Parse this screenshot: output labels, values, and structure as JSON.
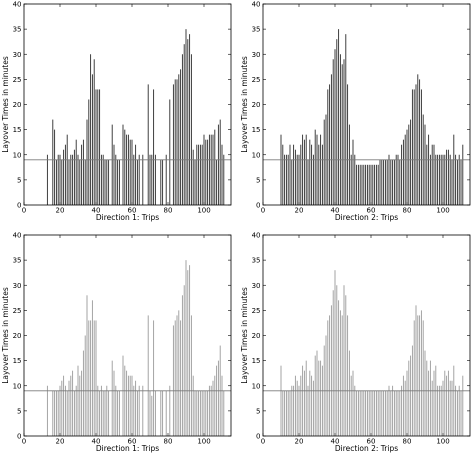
{
  "chart_data": [
    {
      "type": "bar",
      "xlabel": "Direction 1: Trips",
      "ylabel": "Layover Times in minutes",
      "xlim": [
        0,
        115
      ],
      "ylim": [
        0,
        40
      ],
      "xticks": [
        "0",
        "20",
        "40",
        "60",
        "80",
        "100"
      ],
      "yticks": [
        "0",
        "5",
        "10",
        "15",
        "20",
        "25",
        "30",
        "35",
        "40"
      ],
      "reference_line": 9,
      "bar_color": "#2b2b2b",
      "x": [
        13,
        16,
        17,
        18,
        19,
        20,
        21,
        22,
        23,
        24,
        25,
        26,
        27,
        28,
        29,
        30,
        31,
        32,
        33,
        34,
        35,
        36,
        37,
        38,
        39,
        40,
        41,
        42,
        43,
        44,
        45,
        46,
        47,
        49,
        50,
        51,
        52,
        53,
        55,
        56,
        57,
        58,
        59,
        60,
        61,
        62,
        63,
        64,
        66,
        69,
        70,
        71,
        72,
        73,
        76,
        77,
        79,
        81,
        83,
        84,
        85,
        86,
        87,
        88,
        89,
        90,
        91,
        92,
        93,
        94,
        95,
        96,
        97,
        98,
        99,
        100,
        101,
        102,
        103,
        104,
        105,
        106,
        107,
        108,
        109,
        110,
        111
      ],
      "values": [
        10,
        17,
        15,
        9,
        10,
        10,
        9,
        11,
        12,
        14,
        9,
        10,
        10,
        11,
        13,
        10,
        9,
        12,
        13,
        9,
        17,
        21,
        30,
        26,
        29,
        23,
        23,
        23,
        10,
        10,
        9,
        9,
        9,
        16,
        12,
        10,
        9,
        9,
        16,
        15,
        14,
        14,
        13,
        13,
        10,
        12,
        9,
        10,
        10,
        24,
        10,
        10,
        23,
        10,
        9,
        9,
        10,
        21,
        24,
        25,
        25,
        26,
        27,
        30,
        32,
        35,
        33,
        34,
        30,
        11,
        9,
        12,
        12,
        12,
        12,
        14,
        13,
        13,
        14,
        14,
        14,
        15,
        9,
        16,
        17,
        12,
        10
      ]
    },
    {
      "type": "bar",
      "xlabel": "Direction 2: Trips",
      "ylabel": "Layover Times in minutes",
      "xlim": [
        0,
        115
      ],
      "ylim": [
        0,
        40
      ],
      "xticks": [
        "0",
        "20",
        "40",
        "60",
        "80",
        "100"
      ],
      "yticks": [
        "0",
        "5",
        "10",
        "15",
        "20",
        "25",
        "30",
        "35",
        "40"
      ],
      "reference_line": 9,
      "bar_color": "#2b2b2b",
      "x": [
        10,
        11,
        12,
        13,
        14,
        15,
        16,
        17,
        18,
        19,
        20,
        21,
        22,
        23,
        24,
        25,
        26,
        27,
        28,
        29,
        30,
        31,
        32,
        33,
        34,
        35,
        36,
        37,
        38,
        39,
        40,
        41,
        42,
        43,
        44,
        45,
        46,
        47,
        48,
        49,
        50,
        51,
        52,
        53,
        54,
        55,
        56,
        57,
        58,
        59,
        60,
        61,
        62,
        63,
        64,
        65,
        66,
        67,
        68,
        69,
        70,
        71,
        72,
        73,
        74,
        75,
        76,
        77,
        78,
        79,
        80,
        81,
        82,
        83,
        84,
        85,
        86,
        87,
        88,
        89,
        90,
        91,
        92,
        93,
        94,
        95,
        96,
        97,
        98,
        99,
        100,
        101,
        102,
        103,
        104,
        105,
        106,
        107,
        108,
        109,
        110,
        111
      ],
      "values": [
        14,
        12,
        10,
        10,
        10,
        12,
        9,
        12,
        11,
        10,
        10,
        12,
        14,
        13,
        14,
        9,
        13,
        12,
        10,
        15,
        14,
        12,
        14,
        12,
        17,
        18,
        23,
        24,
        26,
        29,
        31,
        33,
        35,
        30,
        28,
        29,
        34,
        24,
        16,
        10,
        13,
        10,
        8,
        8,
        8,
        8,
        8,
        8,
        8,
        8,
        8,
        8,
        8,
        8,
        8,
        9,
        9,
        9,
        9,
        9,
        10,
        9,
        9,
        9,
        10,
        10,
        9,
        12,
        13,
        14,
        15,
        16,
        17,
        23,
        23,
        24,
        26,
        25,
        23,
        18,
        16,
        12,
        14,
        10,
        12,
        12,
        10,
        10,
        10,
        10,
        10,
        10,
        11,
        11,
        10,
        9,
        14,
        10,
        9,
        10,
        9,
        12
      ]
    },
    {
      "type": "bar",
      "xlabel": "Direction 1: Trips",
      "ylabel": "Layover Times in minutes",
      "xlim": [
        0,
        115
      ],
      "ylim": [
        0,
        40
      ],
      "xticks": [
        "0",
        "20",
        "40",
        "60",
        "80",
        "100"
      ],
      "yticks": [
        "0",
        "5",
        "10",
        "15",
        "20",
        "25",
        "30",
        "35",
        "40"
      ],
      "reference_line": 9,
      "bar_color": "#9a9a9a",
      "x": [
        13,
        16,
        17,
        18,
        19,
        20,
        21,
        22,
        23,
        24,
        25,
        26,
        27,
        28,
        29,
        30,
        31,
        32,
        33,
        34,
        35,
        36,
        37,
        38,
        39,
        40,
        41,
        42,
        43,
        44,
        45,
        46,
        47,
        49,
        50,
        51,
        52,
        53,
        55,
        56,
        57,
        58,
        59,
        60,
        61,
        62,
        63,
        64,
        66,
        69,
        70,
        71,
        72,
        73,
        76,
        77,
        79,
        81,
        83,
        84,
        85,
        86,
        87,
        88,
        89,
        90,
        91,
        92,
        93,
        94,
        95,
        96,
        97,
        98,
        99,
        100,
        101,
        102,
        103,
        104,
        105,
        106,
        107,
        108,
        109,
        110,
        111
      ],
      "values": [
        10,
        9,
        9,
        9,
        9,
        10,
        11,
        12,
        10,
        9,
        11,
        12,
        13,
        9,
        10,
        14,
        12,
        13,
        17,
        20,
        28,
        23,
        23,
        27,
        23,
        23,
        10,
        9,
        10,
        9,
        9,
        10,
        9,
        15,
        13,
        10,
        9,
        9,
        16,
        14,
        13,
        12,
        12,
        12,
        10,
        11,
        9,
        10,
        10,
        24,
        9,
        8,
        23,
        9,
        9,
        9,
        9,
        10,
        22,
        23,
        24,
        25,
        23,
        28,
        30,
        35,
        33,
        34,
        24,
        12,
        9,
        9,
        9,
        9,
        9,
        9,
        9,
        9,
        10,
        10,
        11,
        12,
        14,
        15,
        18,
        12,
        9
      ]
    },
    {
      "type": "bar",
      "xlabel": "Direction 2: Trips",
      "ylabel": "Layover Times in minutes",
      "xlim": [
        0,
        115
      ],
      "ylim": [
        0,
        40
      ],
      "xticks": [
        "0",
        "20",
        "40",
        "60",
        "80",
        "100"
      ],
      "yticks": [
        "0",
        "5",
        "10",
        "15",
        "20",
        "25",
        "30",
        "35",
        "40"
      ],
      "reference_line": 9,
      "bar_color": "#9a9a9a",
      "x": [
        10,
        11,
        12,
        13,
        14,
        15,
        16,
        17,
        18,
        19,
        20,
        21,
        22,
        23,
        24,
        25,
        26,
        27,
        28,
        29,
        30,
        31,
        32,
        33,
        34,
        35,
        36,
        37,
        38,
        39,
        40,
        41,
        42,
        43,
        44,
        45,
        46,
        47,
        48,
        49,
        50,
        51,
        52,
        53,
        54,
        55,
        56,
        57,
        58,
        59,
        60,
        61,
        62,
        63,
        64,
        65,
        66,
        67,
        68,
        69,
        70,
        71,
        72,
        73,
        74,
        75,
        76,
        77,
        78,
        79,
        80,
        81,
        82,
        83,
        84,
        85,
        86,
        87,
        88,
        89,
        90,
        91,
        92,
        93,
        94,
        95,
        96,
        97,
        98,
        99,
        100,
        101,
        102,
        103,
        104,
        105,
        106,
        107,
        108,
        109,
        110,
        111
      ],
      "values": [
        14,
        9,
        9,
        9,
        9,
        9,
        10,
        10,
        12,
        11,
        10,
        12,
        14,
        13,
        15,
        10,
        13,
        12,
        11,
        16,
        17,
        15,
        15,
        14,
        18,
        20,
        23,
        24,
        26,
        29,
        33,
        30,
        27,
        25,
        24,
        30,
        28,
        24,
        17,
        12,
        13,
        10,
        9,
        9,
        9,
        9,
        9,
        9,
        9,
        9,
        9,
        9,
        9,
        9,
        9,
        9,
        9,
        9,
        9,
        9,
        10,
        9,
        10,
        9,
        9,
        9,
        9,
        10,
        12,
        11,
        13,
        15,
        16,
        18,
        23,
        26,
        24,
        24,
        25,
        23,
        17,
        15,
        13,
        15,
        11,
        13,
        14,
        10,
        10,
        10,
        11,
        13,
        12,
        13,
        11,
        11,
        14,
        10,
        9,
        10,
        9,
        12
      ]
    }
  ]
}
